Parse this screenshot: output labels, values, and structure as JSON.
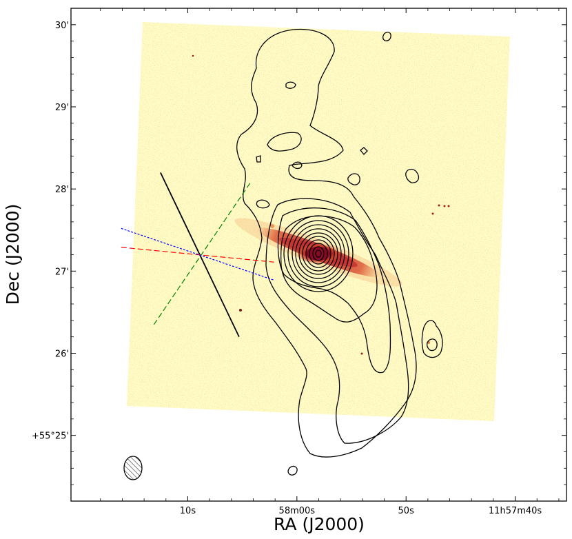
{
  "chart_data": {
    "type": "image-with-contours",
    "xlabel": "RA (J2000)",
    "ylabel": "Dec (J2000)",
    "x_ticks": [
      {
        "label": "10s",
        "x": 10
      },
      {
        "label": "58m00s",
        "x": 0
      },
      {
        "label": "50s",
        "x": -10
      },
      {
        "label": "11h57m40s",
        "x": -20
      }
    ],
    "y_ticks": [
      {
        "label": "+55°25'",
        "y": 25
      },
      {
        "label": "26'",
        "y": 26
      },
      {
        "label": "27'",
        "y": 27
      },
      {
        "label": "28'",
        "y": 28
      },
      {
        "label": "29'",
        "y": 29
      },
      {
        "label": "30'",
        "y": 30
      }
    ],
    "xlim": [
      20.7,
      -24.7
    ],
    "ylim": [
      24.2,
      30.2
    ],
    "colormap": [
      "#fffbc4",
      "#f7d79a",
      "#e0612c",
      "#9a0d2c"
    ],
    "contour_color": "#000000",
    "galaxy_center": {
      "x": -3.8,
      "y": 27.2
    },
    "beam": {
      "x": 12.4,
      "y": 24.6
    },
    "reference_lines": [
      {
        "color": "#000000",
        "style": "solid",
        "x": [
          12.5,
          5.3
        ],
        "y": [
          28.2,
          26.2
        ]
      },
      {
        "color": "#008000",
        "style": "dashed",
        "x": [
          13.1,
          4.3
        ],
        "y": [
          26.35,
          28.07
        ]
      },
      {
        "color": "#ff0000",
        "style": "dashed",
        "x": [
          16.1,
          2.1
        ],
        "y": [
          27.29,
          27.11
        ]
      },
      {
        "color": "#0000ff",
        "style": "dotted",
        "x": [
          16.1,
          2.1
        ],
        "y": [
          27.52,
          26.89
        ]
      }
    ]
  }
}
